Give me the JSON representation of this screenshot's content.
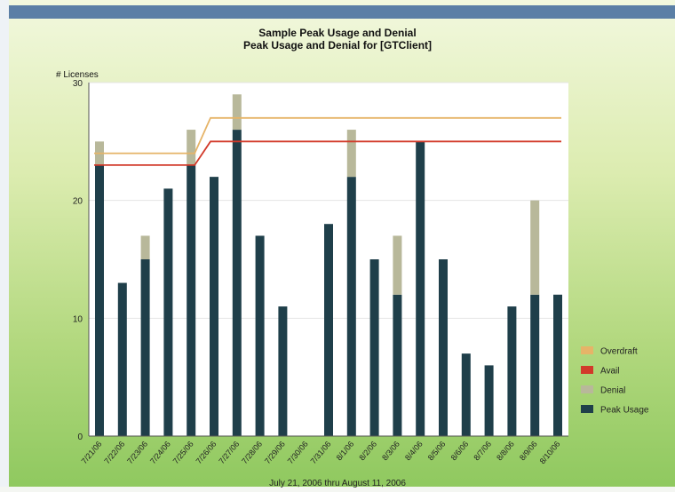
{
  "chart_data": {
    "type": "bar",
    "title": "Sample Peak Usage and Denial",
    "subtitle": "Peak Usage and Denial for [GTClient]",
    "ylabel": "# Licenses",
    "xlabel": "July 21, 2006 thru August 11, 2006",
    "ylim": [
      0,
      30
    ],
    "yticks": [
      "0",
      "10",
      "20",
      "30"
    ],
    "grid": true,
    "legend_position": "right",
    "stacked": true,
    "categories": [
      "7/21/06",
      "7/22/06",
      "7/23/06",
      "7/24/06",
      "7/25/06",
      "7/26/06",
      "7/27/06",
      "7/28/06",
      "7/29/06",
      "7/30/06",
      "7/31/06",
      "8/1/06",
      "8/2/06",
      "8/3/06",
      "8/4/06",
      "8/5/06",
      "8/6/06",
      "8/7/06",
      "8/8/06",
      "8/9/06",
      "8/10/06"
    ],
    "series": [
      {
        "name": "Peak Usage",
        "color": "#1f3f4a",
        "values": [
          23,
          13,
          15,
          21,
          23,
          22,
          26,
          17,
          11,
          0,
          18,
          22,
          15,
          12,
          25,
          15,
          7,
          6,
          11,
          12,
          12
        ]
      },
      {
        "name": "Denial",
        "color": "#b8b89a",
        "values": [
          2,
          0,
          2,
          0,
          3,
          0,
          3,
          0,
          0,
          0,
          0,
          4,
          0,
          5,
          0,
          0,
          0,
          0,
          0,
          8,
          0
        ]
      },
      {
        "name": "Avail",
        "color": "#d23a2a",
        "type": "line",
        "values": [
          23,
          23,
          23,
          23,
          23,
          25,
          25,
          25,
          25,
          25,
          25,
          25,
          25,
          25,
          25,
          25,
          25,
          25,
          25,
          25,
          25
        ]
      },
      {
        "name": "Overdraft",
        "color": "#e6b468",
        "type": "line",
        "values": [
          24,
          24,
          24,
          24,
          24,
          27,
          27,
          27,
          27,
          27,
          27,
          27,
          27,
          27,
          27,
          27,
          27,
          27,
          27,
          27,
          27
        ]
      }
    ],
    "legend": [
      "Overdraft",
      "Avail",
      "Denial",
      "Peak Usage"
    ]
  }
}
